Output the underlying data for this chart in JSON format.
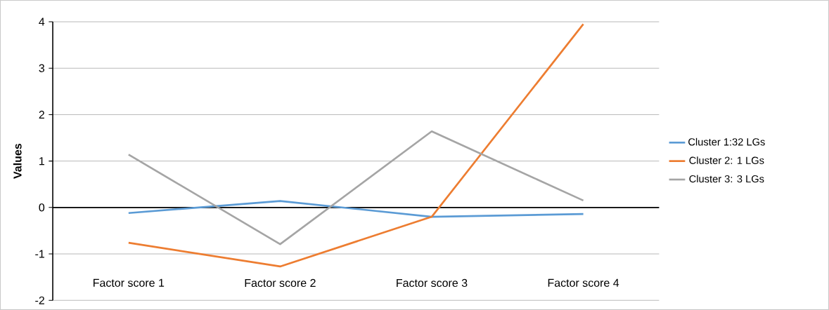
{
  "chart_data": {
    "type": "line",
    "ylabel": "Values",
    "categories": [
      "Factor score 1",
      "Factor score 2",
      "Factor score 3",
      "Factor score 4"
    ],
    "series": [
      {
        "name": "Cluster 1:32 LGs",
        "color": "#5b9bd5",
        "values": [
          -0.12,
          0.14,
          -0.2,
          -0.14
        ]
      },
      {
        "name": "Cluster 2: 1 LGs",
        "color": "#ed7d31",
        "values": [
          -0.76,
          -1.27,
          -0.2,
          3.95
        ]
      },
      {
        "name": "Cluster 3: 3 LGs",
        "color": "#a5a5a5",
        "values": [
          1.14,
          -0.79,
          1.64,
          0.15
        ]
      }
    ],
    "ylim": [
      -2,
      4
    ],
    "yticks": [
      -2,
      -1,
      0,
      1,
      2,
      3,
      4
    ],
    "grid": "y",
    "legend": "right"
  }
}
